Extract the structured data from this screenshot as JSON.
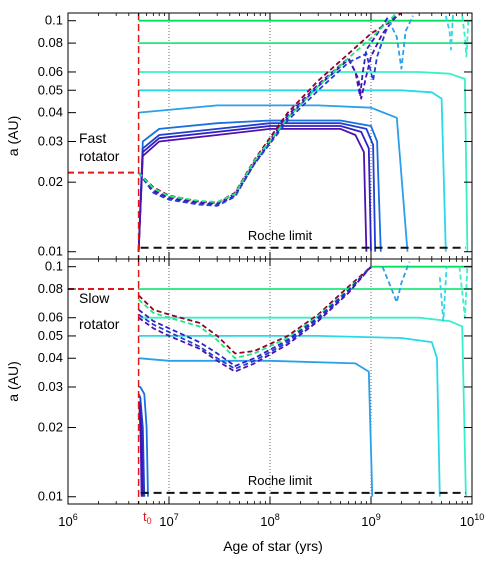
{
  "xlabel": "Age of star (yrs)",
  "t0_label": "t",
  "t0_sub": "0",
  "chart_data": [
    {
      "type": "line",
      "panel": "top",
      "ylabel": "a (AU)",
      "x_scale": "log",
      "y_scale": "log",
      "xlim": [
        1000000,
        10000000000
      ],
      "ylim": [
        0.0093,
        0.108
      ],
      "xticks": [
        1000000,
        10000000,
        100000000,
        1000000000,
        10000000000
      ],
      "xtick_labels": [
        "10^6",
        "10^7",
        "10^8",
        "10^9",
        "10^10"
      ],
      "yticks": [
        0.01,
        0.02,
        0.03,
        0.04,
        0.05,
        0.06,
        0.08,
        0.1
      ],
      "ytick_labels": [
        "0.01",
        "0.02",
        "0.03",
        "0.04",
        "0.05",
        "0.06",
        "0.08",
        "0.1"
      ],
      "vertical_gridlines": [
        10000000,
        100000000,
        1000000000
      ],
      "t0": 5000000,
      "annotations": [
        "Fast",
        "rotator",
        "Roche limit"
      ],
      "roche_limit": 0.0104,
      "initial_marker": {
        "x": [
          1000000,
          5000000
        ],
        "y": 0.022
      },
      "series": [
        {
          "color": "#00e060",
          "style": "solid",
          "x": [
            5000000,
            10000000000
          ],
          "y": [
            0.1,
            0.1
          ]
        },
        {
          "color": "#22e87c",
          "style": "solid",
          "x": [
            5000000,
            10000000000
          ],
          "y": [
            0.08,
            0.08
          ]
        },
        {
          "color": "#38f0c8",
          "style": "solid",
          "x": [
            5000000,
            300000000,
            3000000000,
            6000000000,
            8500000000,
            9000000000
          ],
          "y": [
            0.06,
            0.06,
            0.06,
            0.059,
            0.056,
            0.01
          ]
        },
        {
          "color": "#2ad8e8",
          "style": "solid",
          "x": [
            5000000,
            300000000,
            2000000000,
            4000000000,
            5000000000,
            5500000000
          ],
          "y": [
            0.05,
            0.05,
            0.05,
            0.049,
            0.046,
            0.01
          ]
        },
        {
          "color": "#2aa0ea",
          "style": "solid",
          "x": [
            5000000,
            30000000,
            300000000,
            1000000000,
            1800000000,
            2300000000
          ],
          "y": [
            0.04,
            0.043,
            0.043,
            0.042,
            0.038,
            0.01
          ]
        },
        {
          "color": "#1a70e0",
          "style": "solid",
          "x": [
            5000000,
            5500000,
            8000000,
            30000000,
            100000000,
            500000000,
            1000000000,
            1150000000,
            1250000000
          ],
          "y": [
            0.01,
            0.03,
            0.034,
            0.036,
            0.037,
            0.037,
            0.035,
            0.03,
            0.01
          ]
        },
        {
          "color": "#2040d0",
          "style": "solid",
          "x": [
            5000000,
            5500000,
            8000000,
            30000000,
            100000000,
            500000000,
            900000000,
            1050000000,
            1100000000
          ],
          "y": [
            0.01,
            0.028,
            0.032,
            0.034,
            0.036,
            0.036,
            0.034,
            0.029,
            0.01
          ]
        },
        {
          "color": "#3020c0",
          "style": "solid",
          "x": [
            5000000,
            5500000,
            8000000,
            30000000,
            100000000,
            500000000,
            800000000,
            950000000,
            1000000000
          ],
          "y": [
            0.01,
            0.027,
            0.031,
            0.033,
            0.035,
            0.035,
            0.033,
            0.028,
            0.01
          ]
        },
        {
          "color": "#5010b0",
          "style": "solid",
          "x": [
            5000000,
            5500000,
            8000000,
            30000000,
            100000000,
            500000000,
            700000000,
            850000000,
            900000000
          ],
          "y": [
            0.01,
            0.026,
            0.03,
            0.032,
            0.034,
            0.034,
            0.032,
            0.027,
            0.01
          ]
        },
        {
          "color": "#900030",
          "style": "dashed",
          "x": [
            5000000,
            7000000,
            10000000,
            20000000,
            30000000,
            45000000,
            70000000,
            150000000,
            300000000,
            600000000,
            1000000000,
            1500000000,
            2000000000
          ],
          "y": [
            0.022,
            0.019,
            0.0175,
            0.0165,
            0.0163,
            0.018,
            0.025,
            0.04,
            0.055,
            0.072,
            0.088,
            0.098,
            0.108
          ]
        },
        {
          "color": "#3020c0",
          "style": "dashed",
          "x": [
            5000000,
            7000000,
            10000000,
            20000000,
            30000000,
            45000000,
            70000000,
            150000000,
            300000000,
            600000000,
            700000000,
            780000000,
            830000000,
            900000000,
            1000000000,
            1200000000,
            1500000000
          ],
          "y": [
            0.022,
            0.0182,
            0.017,
            0.0162,
            0.016,
            0.0175,
            0.024,
            0.038,
            0.052,
            0.068,
            0.06,
            0.047,
            0.06,
            0.075,
            0.08,
            0.09,
            0.105
          ]
        },
        {
          "color": "#5010b0",
          "style": "dashed",
          "x": [
            5000000,
            7000000,
            10000000,
            20000000,
            30000000,
            45000000,
            70000000,
            150000000,
            300000000,
            600000000,
            750000000,
            800000000,
            900000000,
            1000000000,
            1300000000,
            1800000000
          ],
          "y": [
            0.022,
            0.0185,
            0.0172,
            0.0164,
            0.0162,
            0.0178,
            0.0245,
            0.039,
            0.053,
            0.069,
            0.056,
            0.046,
            0.058,
            0.07,
            0.088,
            0.105
          ]
        },
        {
          "color": "#2040d0",
          "style": "dashed",
          "x": [
            5000000,
            7000000,
            10000000,
            20000000,
            30000000,
            45000000,
            70000000,
            150000000,
            300000000,
            600000000,
            900000000,
            1050000000,
            1150000000,
            1400000000,
            1700000000
          ],
          "y": [
            0.022,
            0.018,
            0.0168,
            0.016,
            0.0158,
            0.0173,
            0.024,
            0.037,
            0.05,
            0.066,
            0.072,
            0.055,
            0.07,
            0.09,
            0.105
          ]
        },
        {
          "color": "#22e87c",
          "style": "dashed",
          "x": [
            5000000,
            7000000,
            10000000,
            20000000,
            30000000,
            45000000,
            70000000,
            150000000,
            300000000,
            600000000,
            1000000000,
            1500000000,
            1800000000
          ],
          "y": [
            0.022,
            0.0188,
            0.0174,
            0.0166,
            0.0164,
            0.0178,
            0.0248,
            0.038,
            0.052,
            0.069,
            0.084,
            0.1,
            0.108
          ]
        },
        {
          "color": "#2aa0ea",
          "style": "dashed",
          "x": [
            1500000000,
            1800000000,
            2000000000,
            2200000000,
            2600000000
          ],
          "y": [
            0.1,
            0.085,
            0.062,
            0.09,
            0.105
          ]
        },
        {
          "color": "#2ad8e8",
          "style": "dashed",
          "x": [
            5500000000,
            6000000000,
            6200000000,
            6500000000
          ],
          "y": [
            0.105,
            0.09,
            0.075,
            0.108
          ]
        },
        {
          "color": "#38f0c8",
          "style": "dashed",
          "x": [
            8000000000,
            8500000000,
            8800000000,
            9200000000
          ],
          "y": [
            0.105,
            0.085,
            0.07,
            0.1
          ]
        }
      ]
    },
    {
      "type": "line",
      "panel": "bottom",
      "ylabel": "a (AU)",
      "x_scale": "log",
      "y_scale": "log",
      "xlim": [
        1000000,
        10000000000
      ],
      "ylim": [
        0.0093,
        0.108
      ],
      "xticks": [
        1000000,
        10000000,
        100000000,
        1000000000,
        10000000000
      ],
      "xtick_labels": [
        "10^6",
        "10^7",
        "10^8",
        "10^9",
        "10^10"
      ],
      "yticks": [
        0.01,
        0.02,
        0.03,
        0.04,
        0.05,
        0.06,
        0.08,
        0.1
      ],
      "ytick_labels": [
        "0.01",
        "0.02",
        "0.03",
        "0.04",
        "0.05",
        "0.06",
        "0.08",
        "0.1"
      ],
      "vertical_gridlines": [
        10000000,
        100000000,
        1000000000
      ],
      "t0": 5000000,
      "annotations": [
        "Slow",
        "rotator",
        "Roche limit"
      ],
      "roche_limit": 0.0104,
      "initial_marker": {
        "x": [
          1000000,
          5000000
        ],
        "y": 0.08
      },
      "series": [
        {
          "color": "#00e060",
          "style": "solid",
          "x": [
            1000000000,
            10000000000
          ],
          "y": [
            0.1,
            0.1
          ]
        },
        {
          "color": "#22e87c",
          "style": "solid",
          "x": [
            5000000,
            10000000000
          ],
          "y": [
            0.08,
            0.08
          ]
        },
        {
          "color": "#38f0c8",
          "style": "solid",
          "x": [
            5000000,
            300000000,
            3000000000,
            6000000000,
            8000000000,
            8700000000
          ],
          "y": [
            0.06,
            0.06,
            0.06,
            0.058,
            0.055,
            0.01
          ]
        },
        {
          "color": "#2ad8e8",
          "style": "solid",
          "x": [
            5000000,
            300000000,
            2000000000,
            4000000000,
            4500000000,
            4800000000
          ],
          "y": [
            0.05,
            0.05,
            0.049,
            0.047,
            0.04,
            0.01
          ]
        },
        {
          "color": "#2aa0ea",
          "style": "solid",
          "x": [
            5000000,
            10000000,
            100000000,
            700000000,
            950000000,
            1030000000
          ],
          "y": [
            0.04,
            0.039,
            0.039,
            0.038,
            0.035,
            0.01
          ]
        },
        {
          "color": "#1a70e0",
          "style": "solid",
          "x": [
            5000000,
            5200000,
            5700000,
            6000000,
            6200000
          ],
          "y": [
            0.03,
            0.03,
            0.028,
            0.02,
            0.01
          ]
        },
        {
          "color": "#2040d0",
          "style": "solid",
          "x": [
            5000000,
            5200000,
            5500000,
            5700000
          ],
          "y": [
            0.028,
            0.027,
            0.02,
            0.01
          ]
        },
        {
          "color": "#3020c0",
          "style": "solid",
          "x": [
            5000000,
            5150000,
            5350000,
            5500000
          ],
          "y": [
            0.026,
            0.025,
            0.019,
            0.01
          ]
        },
        {
          "color": "#5010b0",
          "style": "solid",
          "x": [
            5000000,
            5100000,
            5250000,
            5350000
          ],
          "y": [
            0.025,
            0.024,
            0.018,
            0.01
          ]
        },
        {
          "color": "#900030",
          "style": "dashed",
          "x": [
            5000000,
            7000000,
            10000000,
            20000000,
            30000000,
            45000000,
            70000000,
            150000000,
            300000000,
            600000000,
            1000000000
          ],
          "y": [
            0.075,
            0.065,
            0.062,
            0.057,
            0.05,
            0.042,
            0.043,
            0.05,
            0.062,
            0.082,
            0.1
          ]
        },
        {
          "color": "#22e87c",
          "style": "dashed",
          "x": [
            5000000,
            7000000,
            10000000,
            20000000,
            30000000,
            45000000,
            70000000,
            150000000,
            300000000,
            600000000,
            1000000000
          ],
          "y": [
            0.072,
            0.063,
            0.06,
            0.055,
            0.048,
            0.04,
            0.042,
            0.049,
            0.061,
            0.08,
            0.1
          ]
        },
        {
          "color": "#3020c0",
          "style": "dashed",
          "x": [
            5000000,
            7000000,
            10000000,
            20000000,
            30000000,
            45000000,
            70000000,
            150000000,
            300000000,
            600000000,
            1000000000
          ],
          "y": [
            0.065,
            0.058,
            0.054,
            0.047,
            0.042,
            0.037,
            0.04,
            0.048,
            0.06,
            0.079,
            0.1
          ]
        },
        {
          "color": "#2040d0",
          "style": "dashed",
          "x": [
            5000000,
            7000000,
            10000000,
            20000000,
            30000000,
            45000000,
            70000000,
            150000000,
            300000000,
            600000000,
            1000000000
          ],
          "y": [
            0.062,
            0.056,
            0.052,
            0.045,
            0.04,
            0.036,
            0.039,
            0.047,
            0.059,
            0.078,
            0.1
          ]
        },
        {
          "color": "#5010b0",
          "style": "dashed",
          "x": [
            5000000,
            7000000,
            10000000,
            20000000,
            30000000,
            45000000,
            70000000,
            150000000,
            300000000,
            600000000,
            1000000000
          ],
          "y": [
            0.06,
            0.054,
            0.05,
            0.044,
            0.039,
            0.035,
            0.038,
            0.046,
            0.058,
            0.077,
            0.1
          ]
        },
        {
          "color": "#2aa0ea",
          "style": "dashed",
          "x": [
            1300000000,
            1600000000,
            1800000000,
            2000000000,
            2400000000
          ],
          "y": [
            0.1,
            0.08,
            0.07,
            0.085,
            0.105
          ]
        },
        {
          "color": "#2ad8e8",
          "style": "dashed",
          "x": [
            4800000000,
            5200000000,
            5600000000
          ],
          "y": [
            0.09,
            0.058,
            0.1
          ]
        },
        {
          "color": "#38f0c8",
          "style": "dashed",
          "x": [
            7500000000,
            8000000000,
            8500000000,
            9000000000
          ],
          "y": [
            0.1,
            0.078,
            0.06,
            0.1
          ]
        }
      ]
    }
  ]
}
